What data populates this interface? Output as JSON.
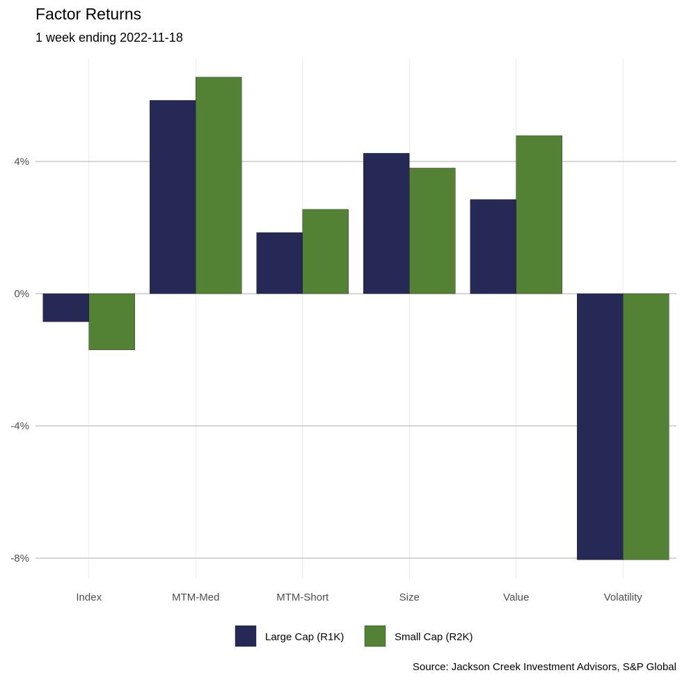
{
  "chart_data": {
    "type": "bar",
    "title": "Factor Returns",
    "subtitle": "1 week ending 2022-11-18",
    "categories": [
      "Index",
      "MTM-Med",
      "MTM-Short",
      "Size",
      "Value",
      "Volatility"
    ],
    "series": [
      {
        "name": "Large Cap (R1K)",
        "color": "#262955",
        "values": [
          -0.85,
          5.85,
          1.85,
          4.25,
          2.85,
          -8.05
        ]
      },
      {
        "name": "Small Cap (R2K)",
        "color": "#548235",
        "values": [
          -1.7,
          6.55,
          2.55,
          3.8,
          4.78,
          -8.05
        ]
      }
    ],
    "ylim": [
      -8.6,
      6.8
    ],
    "yticks": [
      -8,
      -4,
      0,
      4
    ],
    "ytick_labels": [
      "-8%",
      "-4%",
      "0%",
      "4%"
    ],
    "xlabel": "",
    "ylabel": "",
    "grid": true,
    "legend_position": "bottom",
    "source": "Source: Jackson Creek Investment Advisors, S&P Global"
  }
}
